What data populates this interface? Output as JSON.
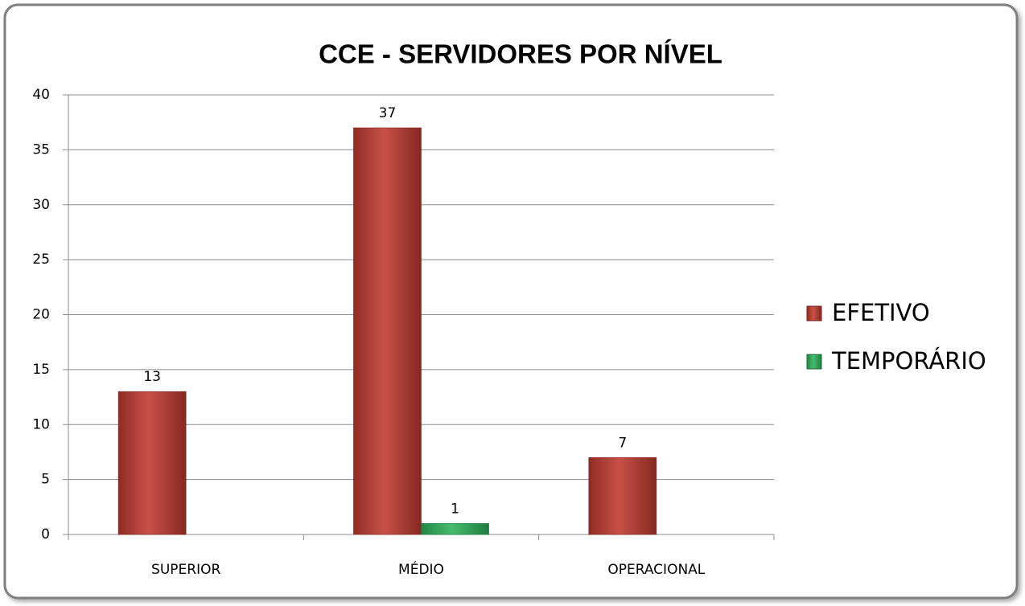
{
  "chart_data": {
    "type": "bar",
    "title": "CCE - SERVIDORES POR NÍVEL",
    "categories": [
      "SUPERIOR",
      "MÉDIO",
      "OPERACIONAL"
    ],
    "series": [
      {
        "name": "EFETIVO",
        "color": "#c0392f",
        "values": [
          13,
          37,
          7
        ]
      },
      {
        "name": "TEMPORÁRIO",
        "color": "#2db35a",
        "values": [
          null,
          1,
          null
        ]
      }
    ],
    "ylim": [
      0,
      40
    ],
    "yticks": [
      0,
      5,
      10,
      15,
      20,
      25,
      30,
      35,
      40
    ],
    "grid": true,
    "legend": "right"
  }
}
